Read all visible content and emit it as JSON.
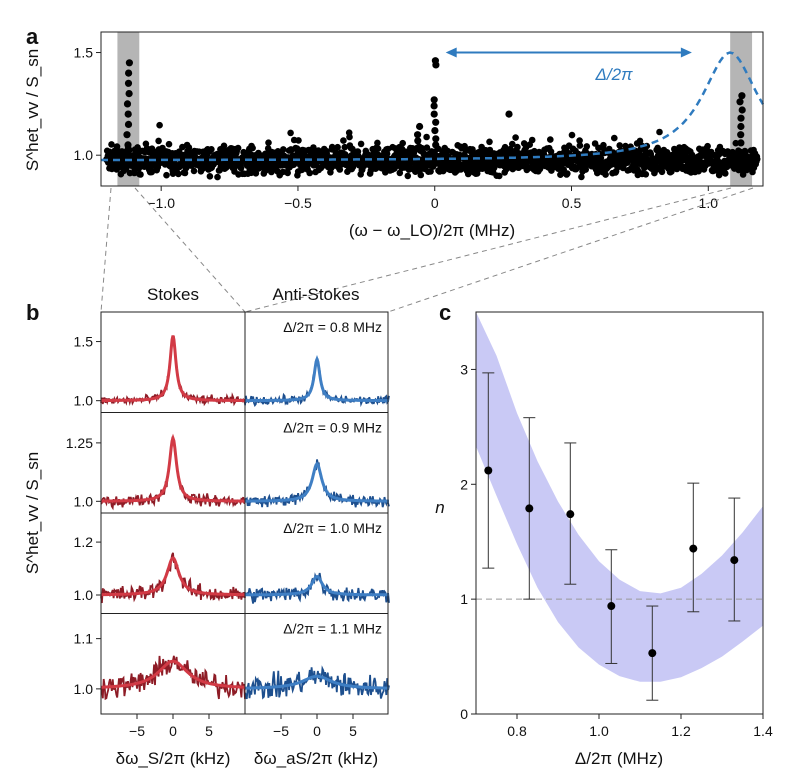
{
  "panel_labels": {
    "a": "a",
    "b": "b",
    "c": "c"
  },
  "colors": {
    "points": "#000000",
    "blue": "#2f7bbf",
    "stokes_raw": "#8e1c26",
    "stokes_fit": "#d23a45",
    "antistokes_raw": "#1d4f8e",
    "antistokes_fit": "#3f7fc4",
    "band": "#c9c9f5",
    "shade": "#b5b5b5"
  },
  "chart_data": [
    {
      "id": "a",
      "type": "scatter",
      "ylabel": "S^het_vv / S_sn",
      "xlabel": "(ω − ω_LO)/2π (MHz)",
      "xlim": [
        -1.22,
        1.2
      ],
      "ylim": [
        0.85,
        1.6
      ],
      "x_ticks": [
        -1.0,
        -0.5,
        0,
        0.5,
        1.0
      ],
      "x_tick_labels": [
        "−1.0",
        "−0.5",
        "0",
        "0.5",
        "1.0"
      ],
      "y_ticks": [
        1.0,
        1.5
      ],
      "y_tick_labels": [
        "1.0",
        "1.5"
      ],
      "annotation": "Δ/2π",
      "annotation_arrow_x": [
        0.04,
        0.94
      ],
      "annotation_arrow_y": 1.5,
      "shaded_regions": [
        [
          -1.16,
          -1.08
        ],
        [
          1.08,
          1.16
        ]
      ],
      "spike_points": [
        {
          "x": -1.12,
          "ys": [
            1.45,
            1.4,
            1.35,
            1.3,
            1.25,
            1.2,
            1.15,
            1.1,
            1.05
          ]
        },
        {
          "x": 0.0,
          "ys": [
            1.46,
            1.44,
            1.27,
            1.24,
            1.2,
            1.16,
            1.12,
            1.08,
            1.05
          ]
        },
        {
          "x": -0.06,
          "ys": [
            1.14,
            1.1,
            1.07,
            1.04
          ]
        },
        {
          "x": 0.27,
          "ys": [
            1.2
          ]
        },
        {
          "x": 1.12,
          "ys": [
            1.29,
            1.26,
            1.22,
            1.18,
            1.14,
            1.1,
            1.06
          ]
        }
      ],
      "baseline_mean": 0.975,
      "baseline_spread": 0.03,
      "dashed_curve": {
        "name": "model",
        "baseline": 0.975,
        "peak_x": 1.08,
        "peak_amp": 0.525,
        "width": 0.125
      }
    },
    {
      "id": "b",
      "type": "line",
      "column_titles": [
        "Stokes",
        "Anti-Stokes"
      ],
      "ylabel": "S^het_vv / S_sn",
      "xlabel_left": "δω_S/2π (kHz)",
      "xlabel_right": "δω_aS/2π (kHz)",
      "x_ticks": [
        -5,
        0,
        5
      ],
      "x_tick_labels": [
        "−5",
        "0",
        "5"
      ],
      "xlim": [
        -10,
        10
      ],
      "rows": [
        {
          "detuning_label": "Δ/2π = 0.8 MHz",
          "ylim": [
            0.9,
            1.75
          ],
          "y_ticks": [
            1.0,
            1.5
          ],
          "y_tick_labels": [
            "1.0",
            "1.5"
          ],
          "stokes_peak": 1.55,
          "antistokes_peak": 1.35,
          "stokes_width": 0.5,
          "antistokes_width": 0.5,
          "noise": 0.018
        },
        {
          "detuning_label": "Δ/2π = 0.9 MHz",
          "ylim": [
            0.95,
            1.38
          ],
          "y_ticks": [
            1.0,
            1.25
          ],
          "y_tick_labels": [
            "1.0",
            "1.25"
          ],
          "stokes_peak": 1.27,
          "antistokes_peak": 1.16,
          "stokes_width": 0.6,
          "antistokes_width": 0.8,
          "noise": 0.012
        },
        {
          "detuning_label": "Δ/2π = 1.0 MHz",
          "ylim": [
            0.93,
            1.31
          ],
          "y_ticks": [
            1.0,
            1.2
          ],
          "y_tick_labels": [
            "1.0",
            "1.2"
          ],
          "stokes_peak": 1.14,
          "antistokes_peak": 1.07,
          "stokes_width": 1.0,
          "antistokes_width": 0.9,
          "noise": 0.015
        },
        {
          "detuning_label": "Δ/2π = 1.1 MHz",
          "ylim": [
            0.95,
            1.15
          ],
          "y_ticks": [
            1.0,
            1.1
          ],
          "y_tick_labels": [
            "1.0",
            "1.1"
          ],
          "stokes_peak": 1.055,
          "antistokes_peak": 1.025,
          "stokes_width": 2.5,
          "antistokes_width": 2.5,
          "noise": 0.012
        }
      ]
    },
    {
      "id": "c",
      "type": "scatter",
      "ylabel": "n",
      "xlabel": "Δ/2π (MHz)",
      "xlim": [
        0.7,
        1.4
      ],
      "ylim": [
        0,
        3.5
      ],
      "x_ticks": [
        0.8,
        1.0,
        1.2,
        1.4
      ],
      "x_tick_labels": [
        "0.8",
        "1.0",
        "1.2",
        "1.4"
      ],
      "y_ticks": [
        0,
        1,
        2,
        3
      ],
      "y_tick_labels": [
        "0",
        "1",
        "2",
        "3"
      ],
      "reference_line_y": 1,
      "points": [
        {
          "x": 0.73,
          "y": 2.12,
          "err_low": 1.27,
          "err_high": 2.97
        },
        {
          "x": 0.83,
          "y": 1.79,
          "err_low": 1.0,
          "err_high": 2.58
        },
        {
          "x": 0.93,
          "y": 1.74,
          "err_low": 1.13,
          "err_high": 2.36
        },
        {
          "x": 1.03,
          "y": 0.94,
          "err_low": 0.44,
          "err_high": 1.43
        },
        {
          "x": 1.13,
          "y": 0.53,
          "err_low": 0.12,
          "err_high": 0.94
        },
        {
          "x": 1.23,
          "y": 1.44,
          "err_low": 0.89,
          "err_high": 2.01
        },
        {
          "x": 1.33,
          "y": 1.34,
          "err_low": 0.81,
          "err_high": 1.88
        }
      ],
      "band_upper": [
        [
          0.7,
          3.5
        ],
        [
          0.75,
          3.12
        ],
        [
          0.8,
          2.62
        ],
        [
          0.85,
          2.2
        ],
        [
          0.9,
          1.85
        ],
        [
          0.95,
          1.56
        ],
        [
          1.0,
          1.33
        ],
        [
          1.05,
          1.17
        ],
        [
          1.1,
          1.07
        ],
        [
          1.15,
          1.05
        ],
        [
          1.2,
          1.1
        ],
        [
          1.25,
          1.22
        ],
        [
          1.3,
          1.38
        ],
        [
          1.35,
          1.58
        ],
        [
          1.4,
          1.81
        ]
      ],
      "band_lower": [
        [
          0.7,
          2.33
        ],
        [
          0.75,
          1.9
        ],
        [
          0.8,
          1.48
        ],
        [
          0.85,
          1.1
        ],
        [
          0.9,
          0.8
        ],
        [
          0.95,
          0.58
        ],
        [
          1.0,
          0.43
        ],
        [
          1.05,
          0.33
        ],
        [
          1.1,
          0.28
        ],
        [
          1.15,
          0.28
        ],
        [
          1.2,
          0.32
        ],
        [
          1.25,
          0.4
        ],
        [
          1.3,
          0.5
        ],
        [
          1.35,
          0.63
        ],
        [
          1.4,
          0.77
        ]
      ]
    }
  ]
}
